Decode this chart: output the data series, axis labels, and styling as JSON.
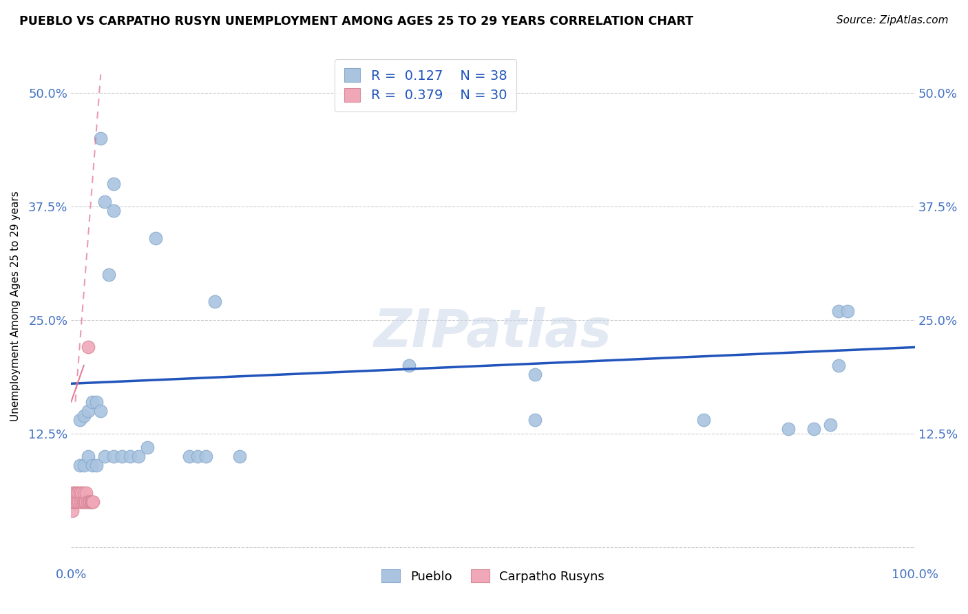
{
  "title": "PUEBLO VS CARPATHO RUSYN UNEMPLOYMENT AMONG AGES 25 TO 29 YEARS CORRELATION CHART",
  "source": "Source: ZipAtlas.com",
  "ylabel": "Unemployment Among Ages 25 to 29 years",
  "xlim": [
    0,
    100
  ],
  "ylim": [
    -2,
    55
  ],
  "yticks": [
    0,
    12.5,
    25,
    37.5,
    50
  ],
  "ytick_labels": [
    "",
    "12.5%",
    "25.0%",
    "37.5%",
    "50.0%"
  ],
  "xticks": [
    0,
    25,
    50,
    75,
    100
  ],
  "xtick_labels": [
    "0.0%",
    "",
    "",
    "",
    "100.0%"
  ],
  "pueblo_color": "#aac4e0",
  "pueblo_edge": "#88aace",
  "carpatho_color": "#f0a8b8",
  "carpatho_edge": "#d88898",
  "trend_blue_color": "#2255bb",
  "trend_pink_color": "#e07090",
  "grid_color": "#cccccc",
  "text_color": "#4472c4",
  "watermark": "ZIPatlas",
  "legend_text_color": "#2255bb",
  "pueblo_x": [
    3.5,
    5,
    5,
    4,
    4.5,
    10,
    17,
    40,
    55,
    75,
    90,
    88,
    91,
    92,
    1,
    1.5,
    2,
    2.5,
    3,
    4,
    5,
    6,
    7,
    8,
    9,
    14,
    15,
    16,
    20,
    55,
    85,
    91,
    1,
    1.5,
    2,
    2.5,
    3,
    3.5
  ],
  "pueblo_y": [
    45,
    40,
    37,
    38,
    30,
    34,
    27,
    20,
    19,
    14,
    13.5,
    13,
    26,
    26,
    9,
    9,
    10,
    9,
    9,
    10,
    10,
    10,
    10,
    10,
    11,
    10,
    10,
    10,
    10,
    14,
    13,
    20,
    14,
    14.5,
    15,
    16,
    16,
    15
  ],
  "carpatho_x": [
    0.1,
    0.15,
    0.2,
    0.25,
    0.3,
    0.35,
    0.4,
    0.45,
    0.5,
    0.6,
    0.7,
    0.8,
    0.9,
    1.0,
    1.1,
    1.2,
    1.3,
    1.4,
    1.5,
    1.6,
    1.7,
    1.8,
    1.9,
    2.0,
    2.1,
    2.2,
    2.3,
    2.4,
    2.5,
    2.6
  ],
  "carpatho_y": [
    5,
    4,
    6,
    5,
    5,
    5,
    6,
    5,
    5,
    6,
    5,
    6,
    5,
    6,
    5,
    6,
    5,
    5,
    6,
    5,
    5,
    6,
    5,
    22,
    5,
    5,
    5,
    5,
    5,
    5
  ],
  "pueblo_trend": [
    0,
    100,
    18,
    22
  ],
  "pink_dashed_trend": [
    0.5,
    3.5,
    16,
    52
  ],
  "pink_solid_trend": [
    0,
    1.5,
    16,
    20
  ]
}
